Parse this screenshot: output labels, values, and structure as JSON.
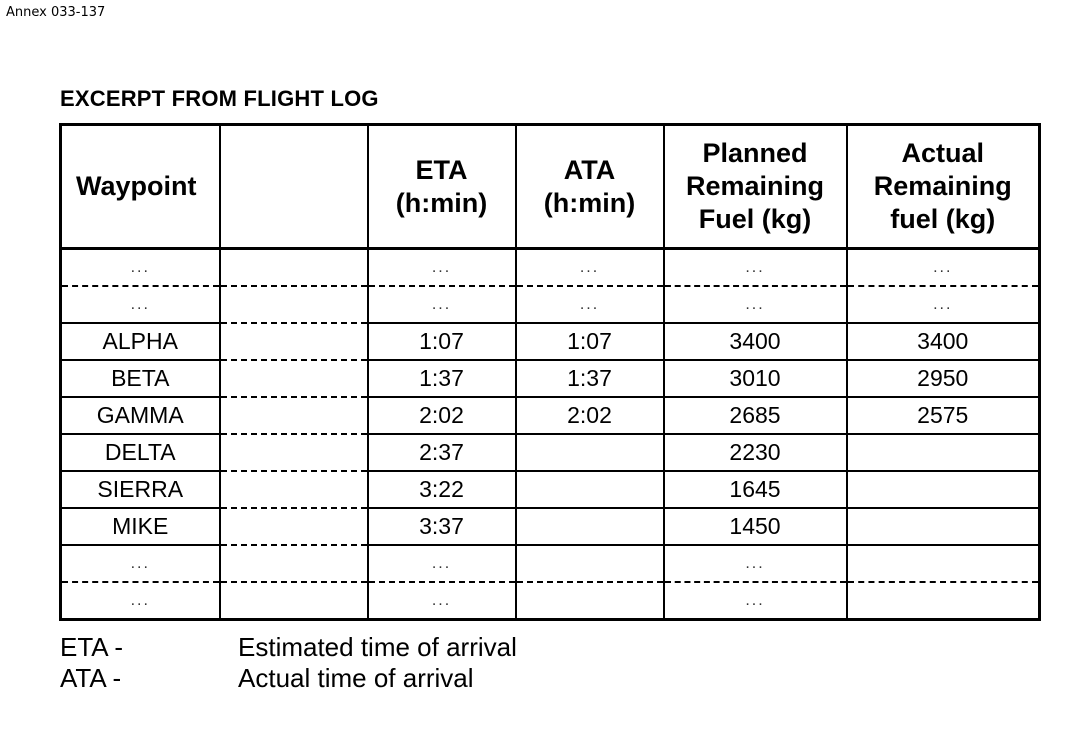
{
  "annex": "Annex 033-137",
  "title": "EXCERPT FROM FLIGHT LOG",
  "headers": {
    "waypoint": "Waypoint",
    "blank": "",
    "eta": [
      "ETA",
      "(h:min)"
    ],
    "ata": [
      "ATA",
      "(h:min)"
    ],
    "planned": [
      "Planned",
      "Remaining",
      "Fuel (kg)"
    ],
    "actual": [
      "Actual",
      "Remaining",
      "fuel (kg)"
    ]
  },
  "rows": [
    {
      "wp": "...",
      "eta": "...",
      "ata": "...",
      "planned": "...",
      "actual": "..."
    },
    {
      "wp": "...",
      "eta": "...",
      "ata": "...",
      "planned": "...",
      "actual": "..."
    },
    {
      "wp": "ALPHA",
      "eta": "1:07",
      "ata": "1:07",
      "planned": "3400",
      "actual": "3400"
    },
    {
      "wp": "BETA",
      "eta": "1:37",
      "ata": "1:37",
      "planned": "3010",
      "actual": "2950"
    },
    {
      "wp": "GAMMA",
      "eta": "2:02",
      "ata": "2:02",
      "planned": "2685",
      "actual": "2575"
    },
    {
      "wp": "DELTA",
      "eta": "2:37",
      "ata": "",
      "planned": "2230",
      "actual": ""
    },
    {
      "wp": "SIERRA",
      "eta": "3:22",
      "ata": "",
      "planned": "1645",
      "actual": ""
    },
    {
      "wp": "MIKE",
      "eta": "3:37",
      "ata": "",
      "planned": "1450",
      "actual": ""
    },
    {
      "wp": "...",
      "eta": "...",
      "ata": "",
      "planned": "...",
      "actual": ""
    },
    {
      "wp": "...",
      "eta": "...",
      "ata": "",
      "planned": "...",
      "actual": ""
    }
  ],
  "legend": [
    {
      "abbr": "ETA -",
      "text": "Estimated time of arrival"
    },
    {
      "abbr": "ATA -",
      "text": "Actual time of arrival"
    }
  ]
}
